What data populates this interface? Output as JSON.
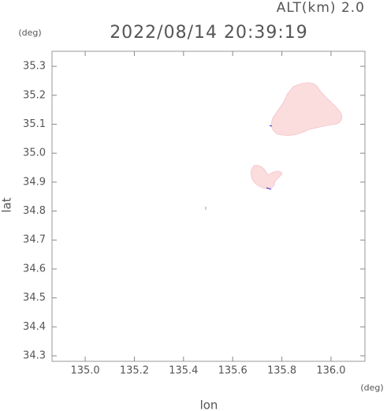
{
  "chart_data": {
    "type": "map",
    "title": "2022/08/14 20:39:19",
    "annotation": "ALT(km) 2.0",
    "y_unit": "(deg)",
    "x_unit": "(deg)",
    "xlabel": "lon",
    "ylabel": "lat",
    "xlim": [
      134.865,
      136.138
    ],
    "ylim": [
      34.281,
      35.352
    ],
    "xticks": [
      {
        "value": 135,
        "label": "135.0"
      },
      135.2,
      135.4,
      135.6,
      135.8,
      {
        "value": 136,
        "label": "136.0"
      }
    ],
    "yticks": [
      34.3,
      34.4,
      34.5,
      34.6,
      34.7,
      34.8,
      34.9,
      {
        "value": 35,
        "label": "35.0"
      },
      35.1,
      35.2,
      35.3
    ]
  }
}
